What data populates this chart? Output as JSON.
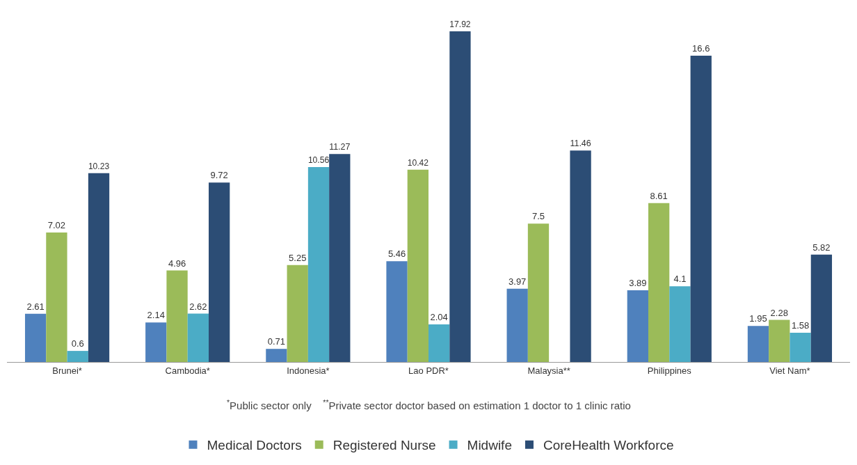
{
  "chart_data": {
    "type": "bar",
    "categories": [
      "Brunei*",
      "Cambodia*",
      "Indonesia*",
      "Lao PDR*",
      "Malaysia**",
      "Philippines",
      "Viet Nam*"
    ],
    "series": [
      {
        "name": "Medical Doctors",
        "color": "#4f81bd",
        "values": [
          2.61,
          2.14,
          0.71,
          5.46,
          3.97,
          3.89,
          1.95
        ]
      },
      {
        "name": "Registered Nurse",
        "color": "#9bbb59",
        "values": [
          7.02,
          4.96,
          5.25,
          10.42,
          7.5,
          8.61,
          2.28
        ]
      },
      {
        "name": "Midwife",
        "color": "#4bacc6",
        "values": [
          0.6,
          2.62,
          10.56,
          2.04,
          null,
          4.1,
          1.58
        ]
      },
      {
        "name": "CoreHealth Workforce",
        "color": "#2c4d75",
        "values": [
          10.23,
          9.72,
          11.27,
          17.92,
          11.46,
          16.6,
          5.82
        ]
      }
    ],
    "data_labels": true,
    "annotations": [
      "$^{*}$Public sector only    $^{**}$Private sector doctor based on estimation 1 doctor to 1 clinic ratio"
    ],
    "grid": false,
    "legend": "bottom",
    "tick_labels": "x"
  }
}
